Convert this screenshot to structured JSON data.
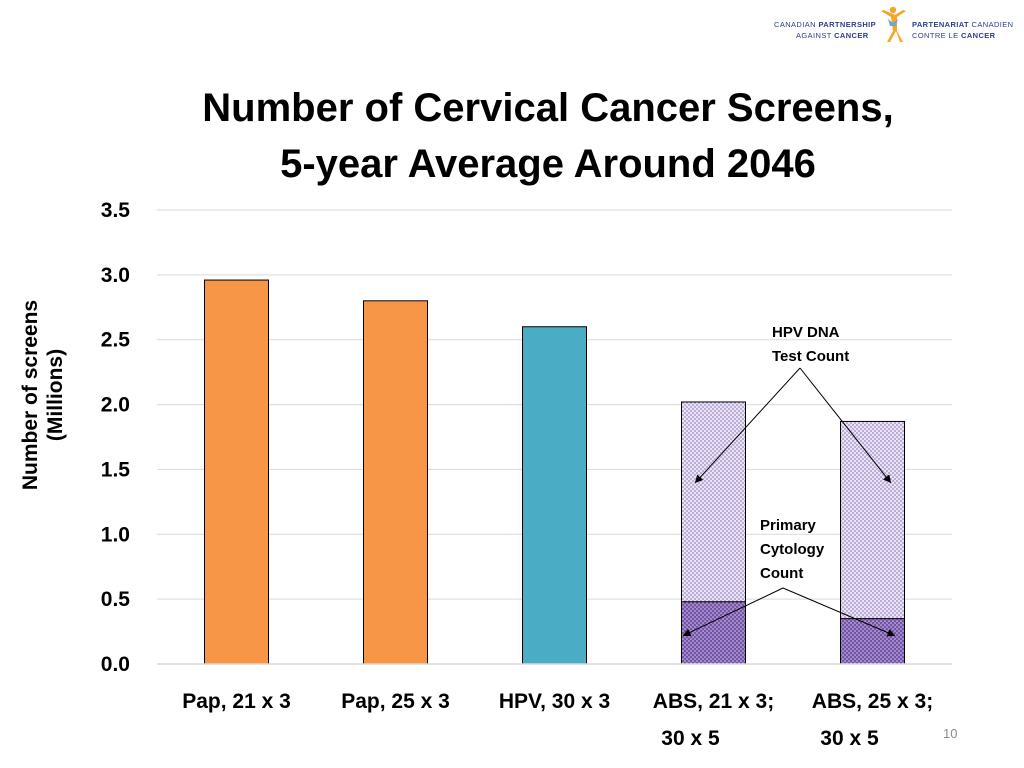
{
  "logo": {
    "en_line1_light": "CANADIAN",
    "en_line1_bold": "PARTNERSHIP",
    "en_line2_light": "AGAINST",
    "en_line2_bold": "CANCER",
    "fr_line1_bold": "PARTENARIAT",
    "fr_line1_light": "CANADIEN",
    "fr_line2_light": "CONTRE LE",
    "fr_line2_bold": "CANCER",
    "colors": {
      "text": "#2c3e8c",
      "figure_orange": "#f5a623",
      "figure_blue": "#6aa6d6"
    }
  },
  "page_number": "10",
  "chart_data": {
    "type": "bar",
    "title": [
      "Number of Cervical Cancer Screens,",
      "5-year Average Around 2046"
    ],
    "ylabel": [
      "Number of screens",
      "(Millions)"
    ],
    "xlabel": "",
    "ylim": [
      0,
      3.5
    ],
    "yticks": [
      "0.0",
      "0.5",
      "1.0",
      "1.5",
      "2.0",
      "2.5",
      "3.0",
      "3.5"
    ],
    "grid": true,
    "categories": [
      [
        "Pap, 21 x 3"
      ],
      [
        "Pap, 25 x 3"
      ],
      [
        "HPV, 30 x 3"
      ],
      [
        "ABS, 21 x 3;",
        "30 x 5"
      ],
      [
        "ABS, 25 x 3;",
        "30 x 5"
      ]
    ],
    "bars": [
      {
        "total": 2.96,
        "segments": [
          {
            "value": 2.96,
            "style": "solid",
            "color": "#f79646"
          }
        ]
      },
      {
        "total": 2.8,
        "segments": [
          {
            "value": 2.8,
            "style": "solid",
            "color": "#f79646"
          }
        ]
      },
      {
        "total": 2.6,
        "segments": [
          {
            "value": 2.6,
            "style": "solid",
            "color": "#4bacc6"
          }
        ]
      },
      {
        "total": 2.02,
        "segments": [
          {
            "value": 0.48,
            "style": "dark-dots",
            "name": "Primary Cytology Count"
          },
          {
            "value": 1.54,
            "style": "light-dots",
            "name": "HPV DNA Test Count"
          }
        ]
      },
      {
        "total": 1.87,
        "segments": [
          {
            "value": 0.35,
            "style": "dark-dots",
            "name": "Primary Cytology Count"
          },
          {
            "value": 1.52,
            "style": "light-dots",
            "name": "HPV DNA Test Count"
          }
        ]
      }
    ],
    "annotations": [
      {
        "lines": [
          "HPV DNA",
          "Test Count"
        ],
        "target_segment": "light-dots",
        "target_bars": [
          3,
          4
        ],
        "arrow_at_value": 1.4
      },
      {
        "lines": [
          "Primary",
          "Cytology",
          "Count"
        ],
        "target_segment": "dark-dots",
        "target_bars": [
          3,
          4
        ],
        "arrow_at_value": 0.22
      }
    ],
    "colors": {
      "orange": "#f79646",
      "teal": "#4bacc6",
      "purple_dark": "#7a5ba8",
      "purple_light": "#cfc3e3",
      "grid": "#d9d9d9",
      "bar_border": "#000000"
    }
  }
}
